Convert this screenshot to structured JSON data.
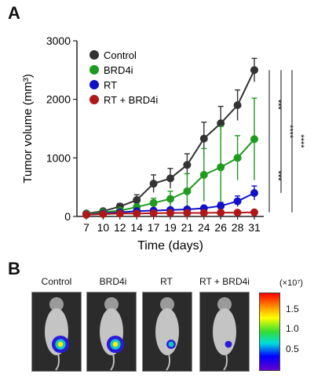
{
  "panel_a": {
    "letter": "A"
  },
  "panel_b": {
    "letter": "B",
    "mice": [
      {
        "label": "Control",
        "signal": 1.7
      },
      {
        "label": "BRD4i",
        "signal": 1.7
      },
      {
        "label": "RT",
        "signal": 0.6
      },
      {
        "label": "RT + BRD4i",
        "signal": 0.3
      }
    ],
    "colorbar": {
      "unit": "(×10⁷)",
      "ticks": [
        "1.5",
        "1.0",
        "0.5"
      ],
      "tick_values": [
        1.5,
        1.0,
        0.5
      ],
      "range": [
        0,
        1.9
      ]
    }
  },
  "chart_data": {
    "type": "line",
    "xlabel": "Time (days)",
    "ylabel": "Tumor volume (mm³)",
    "x": [
      7,
      10,
      12,
      14,
      17,
      19,
      21,
      24,
      26,
      28,
      31
    ],
    "ylim": [
      0,
      3000
    ],
    "yticks": [
      0,
      1000,
      2000,
      3000
    ],
    "grid": false,
    "legend_position": "top-left",
    "series": [
      {
        "name": "Control",
        "color": "#333333",
        "values": [
          50,
          90,
          170,
          280,
          560,
          650,
          880,
          1330,
          1590,
          1900,
          2500
        ],
        "error": [
          20,
          30,
          50,
          90,
          150,
          170,
          190,
          280,
          290,
          260,
          200
        ]
      },
      {
        "name": "BRD4i",
        "color": "#1f9a1f",
        "values": [
          40,
          70,
          100,
          160,
          230,
          300,
          430,
          710,
          840,
          1000,
          1320
        ],
        "error": [
          15,
          20,
          30,
          50,
          80,
          130,
          300,
          450,
          700,
          380,
          700
        ]
      },
      {
        "name": "RT",
        "color": "#1010c8",
        "values": [
          30,
          50,
          70,
          90,
          100,
          110,
          120,
          140,
          180,
          260,
          400
        ],
        "error": [
          10,
          15,
          20,
          25,
          30,
          30,
          35,
          40,
          60,
          90,
          120
        ]
      },
      {
        "name": "RT + BRD4i",
        "color": "#b01818",
        "values": [
          30,
          40,
          50,
          50,
          55,
          60,
          60,
          60,
          65,
          65,
          70
        ],
        "error": [
          10,
          10,
          10,
          10,
          10,
          10,
          10,
          10,
          10,
          10,
          10
        ]
      }
    ],
    "significance": [
      {
        "label": "***",
        "from_value": 2500,
        "to_value": 1320
      },
      {
        "label": "***",
        "from_value": 1320,
        "to_value": 70
      },
      {
        "label": "****",
        "from_value": 2500,
        "to_value": 400
      },
      {
        "label": "****",
        "from_value": 2500,
        "to_value": 70
      }
    ]
  }
}
